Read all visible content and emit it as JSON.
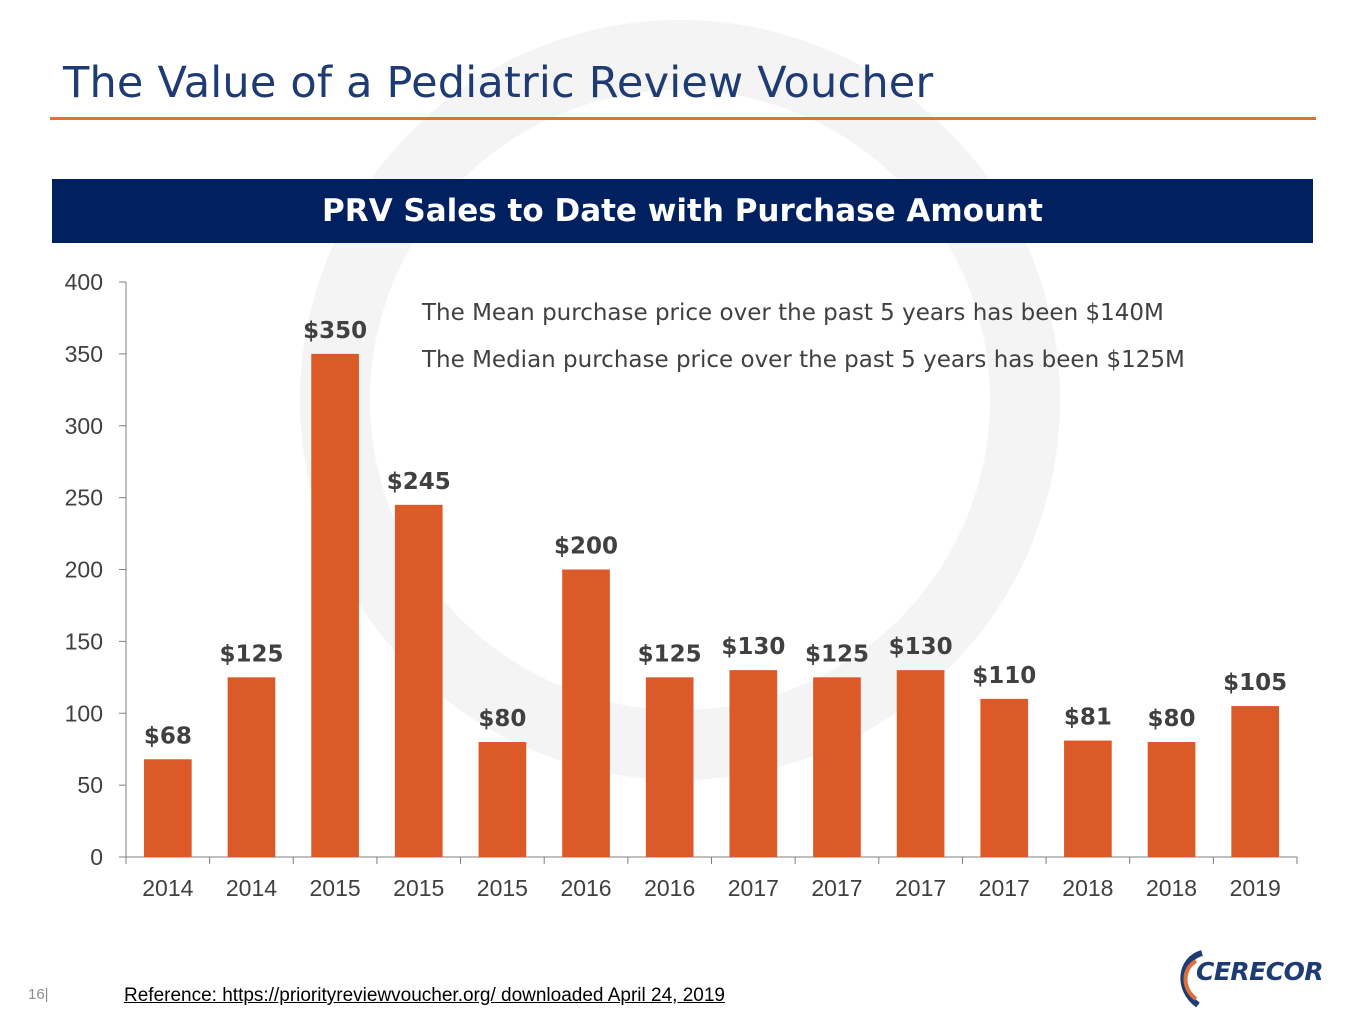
{
  "slide": {
    "title": "The Value of a Pediatric Review Voucher",
    "banner": "PRV Sales to Date with Purchase Amount",
    "notes": [
      "The Mean purchase price over the past 5 years has been $140M",
      "The Median purchase price over the past 5 years has been $125M"
    ],
    "page_number": "16|",
    "reference": "Reference: https://priorityreviewvoucher.org/ downloaded April 24, 2019",
    "logo_text": "CERECOR"
  },
  "colors": {
    "bar": "#dc5a28",
    "title": "#1f3b73",
    "banner_bg": "#002060",
    "rule": "#e0703a"
  },
  "chart_data": {
    "type": "bar",
    "categories": [
      "2014",
      "2014",
      "2015",
      "2015",
      "2015",
      "2016",
      "2016",
      "2017",
      "2017",
      "2017",
      "2017",
      "2018",
      "2018",
      "2019"
    ],
    "values": [
      68,
      125,
      350,
      245,
      80,
      200,
      125,
      130,
      125,
      130,
      110,
      81,
      80,
      105
    ],
    "data_labels": [
      "$68",
      "$125",
      "$350",
      "$245",
      "$80",
      "$200",
      "$125",
      "$130",
      "$125",
      "$130",
      "$110",
      "$81",
      "$80",
      "$105"
    ],
    "title": "PRV Sales to Date with Purchase Amount",
    "xlabel": "",
    "ylabel": "",
    "ylim": [
      0,
      400
    ],
    "yticks": [
      0,
      50,
      100,
      150,
      200,
      250,
      300,
      350,
      400
    ],
    "grid": false,
    "legend": "none"
  }
}
